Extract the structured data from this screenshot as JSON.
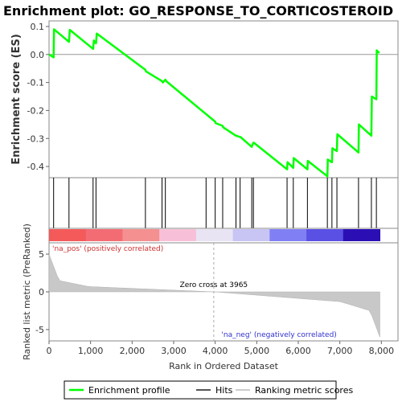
{
  "chart_data": {
    "type": "line",
    "title": "Enrichment plot: GO_RESPONSE_TO_CORTICOSTEROID",
    "top_panel": {
      "ylabel": "Enrichment score (ES)",
      "yticks": [
        "0.1",
        "0.0",
        "-0.1",
        "-0.2",
        "-0.3",
        "-0.4"
      ],
      "ylim": [
        -0.44,
        0.12
      ],
      "series": [
        {
          "name": "Enrichment profile",
          "color": "#00ff00",
          "x": [
            0,
            110,
            120,
            480,
            500,
            1060,
            1080,
            1130,
            1150,
            2320,
            2330,
            2720,
            2740,
            2800,
            2820,
            4000,
            4010,
            4180,
            4190,
            4500,
            4510,
            4600,
            4610,
            4880,
            4890,
            4920,
            4930,
            5730,
            5740,
            5880,
            5890,
            6220,
            6230,
            6700,
            6710,
            6810,
            6820,
            6930,
            6940,
            7450,
            7460,
            7760,
            7770,
            7880,
            7890,
            7950
          ],
          "y": [
            0.0,
            -0.01,
            0.09,
            0.045,
            0.088,
            0.02,
            0.05,
            0.04,
            0.075,
            -0.055,
            -0.06,
            -0.095,
            -0.1,
            -0.09,
            -0.095,
            -0.24,
            -0.245,
            -0.255,
            -0.26,
            -0.29,
            -0.29,
            -0.295,
            -0.295,
            -0.33,
            -0.325,
            -0.315,
            -0.315,
            -0.41,
            -0.385,
            -0.405,
            -0.37,
            -0.41,
            -0.38,
            -0.435,
            -0.375,
            -0.385,
            -0.335,
            -0.345,
            -0.285,
            -0.35,
            -0.25,
            -0.29,
            -0.15,
            -0.16,
            0.015,
            0.005
          ]
        }
      ]
    },
    "hits": [
      110,
      480,
      1060,
      1130,
      2320,
      2720,
      2800,
      3780,
      4000,
      4180,
      4500,
      4600,
      4880,
      4920,
      5730,
      5880,
      6220,
      6700,
      6810,
      6930,
      7450,
      7760,
      7880
    ],
    "bottom_panel": {
      "ylabel": "Ranked list metric (PreRanked)",
      "yticks": [
        "5",
        "0",
        "-5"
      ],
      "ylim": [
        -6.5,
        6.5
      ],
      "zero_cross_label": "Zero cross at 3965",
      "zero_cross": 3965,
      "pos_label": "'na_pos' (positively correlated)",
      "neg_label": "'na_neg' (negatively correlated)"
    },
    "xlabel": "Rank in Ordered Dataset",
    "xticks": [
      "0",
      "1,000",
      "2,000",
      "3,000",
      "4,000",
      "5,000",
      "6,000",
      "7,000",
      "8,000"
    ],
    "xlim": [
      0,
      8400
    ],
    "n": 7965,
    "heatmap_colors": [
      "#f45a5a",
      "#f36c74",
      "#f49090",
      "#f8c0d8",
      "#e8e4f4",
      "#c8c4f4",
      "#8080f4",
      "#5a50e4",
      "#2b0fb5"
    ],
    "legend": [
      {
        "label": "Enrichment profile",
        "color": "#00ff00"
      },
      {
        "label": "Hits",
        "color": "#555555"
      },
      {
        "label": "Ranking metric scores",
        "color": "#cccccc"
      }
    ]
  }
}
